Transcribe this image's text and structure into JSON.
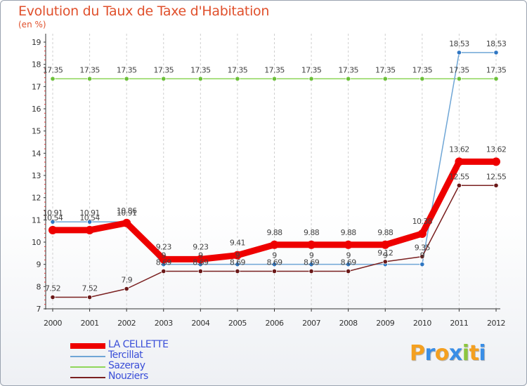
{
  "title": "Evolution du Taux de Taxe d'Habitation",
  "subtitle": "(en %)",
  "logo": {
    "text": "Proxiti",
    "letters": [
      {
        "ch": "P",
        "color": "#f4a020"
      },
      {
        "ch": "r",
        "color": "#3a8ee6"
      },
      {
        "ch": "o",
        "color": "#f4a020"
      },
      {
        "ch": "x",
        "color": "#3a8ee6"
      },
      {
        "ch": "i",
        "color": "#8cc63e"
      },
      {
        "ch": "t",
        "color": "#f4a020"
      },
      {
        "ch": "i",
        "color": "#3a8ee6"
      }
    ]
  },
  "chart_data": {
    "type": "line",
    "x": [
      "2000",
      "2001",
      "2002",
      "2003",
      "2004",
      "2005",
      "2006",
      "2007",
      "2008",
      "2009",
      "2010",
      "2011",
      "2012"
    ],
    "ylim": [
      7,
      19
    ],
    "yticks": [
      7,
      8,
      9,
      10,
      11,
      12,
      13,
      14,
      15,
      16,
      17,
      18,
      19
    ],
    "grid": "vertical dashed",
    "legend_position": "bottom-left",
    "series": [
      {
        "name": "LA CELLETTE",
        "color": "#ee0000",
        "values": [
          10.54,
          10.54,
          10.86,
          9.23,
          9.23,
          9.41,
          9.88,
          9.88,
          9.88,
          9.88,
          10.38,
          13.62,
          13.62
        ],
        "labels": [
          "10.54",
          "10.54",
          "10.86",
          "9.23",
          "9.23",
          "9.41",
          "9.88",
          "9.88",
          "9.88",
          "9.88",
          "10.38",
          "13.62",
          "13.62"
        ]
      },
      {
        "name": "Tercillat",
        "color": "#6fa6d6",
        "values": [
          10.91,
          10.91,
          10.91,
          9,
          9,
          9,
          9,
          9,
          9,
          9,
          9,
          18.53,
          18.53
        ],
        "labels": [
          "10.91",
          "10.91",
          "10.91",
          "9",
          "9",
          "9",
          "9",
          "9",
          "9",
          "9",
          "9",
          "18.53",
          "18.53"
        ]
      },
      {
        "name": "Sazeray",
        "color": "#8fd65a",
        "values": [
          17.35,
          17.35,
          17.35,
          17.35,
          17.35,
          17.35,
          17.35,
          17.35,
          17.35,
          17.35,
          17.35,
          17.35,
          17.35
        ],
        "labels": [
          "17.35",
          "17.35",
          "17.35",
          "17.35",
          "17.35",
          "17.35",
          "17.35",
          "17.35",
          "17.35",
          "17.35",
          "17.35",
          "17.35",
          "17.35"
        ]
      },
      {
        "name": "Nouziers",
        "color": "#7a2020",
        "values": [
          7.52,
          7.52,
          7.9,
          8.69,
          8.69,
          8.69,
          8.69,
          8.69,
          8.69,
          9.12,
          9.35,
          12.55,
          12.55
        ],
        "labels": [
          "7.52",
          "7.52",
          "7.9",
          "8.69",
          "8.69",
          "8.69",
          "8.69",
          "8.69",
          "8.69",
          "9.12",
          "9.35",
          "12.55",
          "12.55"
        ]
      }
    ]
  }
}
